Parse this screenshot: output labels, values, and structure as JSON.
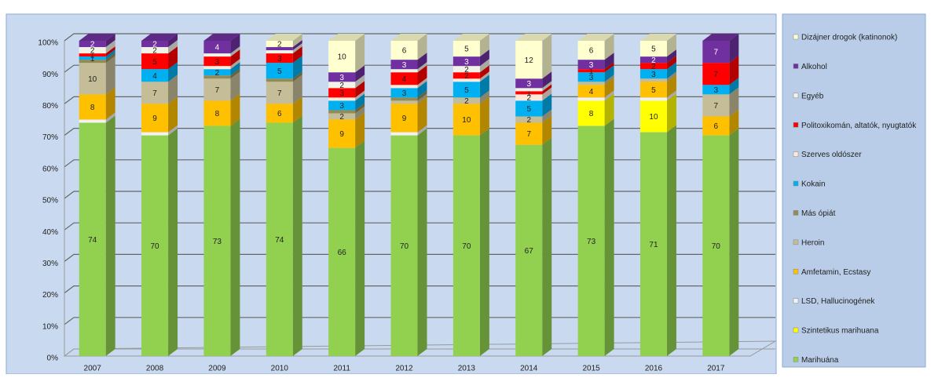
{
  "chart_data": {
    "type": "bar3d_stacked",
    "categories": [
      "2007",
      "2008",
      "2009",
      "2010",
      "2011",
      "2012",
      "2013",
      "2014",
      "2015",
      "2016",
      "2017"
    ],
    "series": [
      {
        "name": "Marihuána",
        "color": "#92d050",
        "values": [
          74,
          70,
          73,
          74,
          66,
          70,
          70,
          67,
          73,
          71,
          70
        ]
      },
      {
        "name": "Szintetikus marihuana",
        "color": "#ffff00",
        "values": [
          0,
          0,
          0,
          0,
          0,
          0,
          0,
          0,
          8,
          10,
          0
        ]
      },
      {
        "name": "LSD, Hallucinogének",
        "color": "#f2f2f2",
        "values": [
          1,
          1,
          0,
          0,
          0,
          1,
          0,
          0,
          1,
          1,
          0
        ]
      },
      {
        "name": "Amfetamin, Ecstasy",
        "color": "#ffc000",
        "values": [
          8,
          9,
          8,
          6,
          9,
          9,
          10,
          7,
          4,
          5,
          6
        ]
      },
      {
        "name": "Heroin",
        "color": "#c4bd97",
        "values": [
          10,
          7,
          7,
          7,
          2,
          1,
          2,
          2,
          1,
          1,
          7
        ]
      },
      {
        "name": "Más ópiát",
        "color": "#948a54",
        "values": [
          1,
          0,
          1,
          1,
          1,
          1,
          0,
          0,
          0,
          0,
          0
        ]
      },
      {
        "name": "Kokain",
        "color": "#00b0f0",
        "values": [
          1,
          4,
          2,
          5,
          3,
          3,
          5,
          5,
          3,
          3,
          3
        ]
      },
      {
        "name": "Szerves oldószer",
        "color": "#fde9d9",
        "values": [
          0,
          0,
          1,
          0,
          1,
          1,
          1,
          2,
          0,
          0,
          0
        ]
      },
      {
        "name": "Politoxikomán, altatók, nyugtatók",
        "color": "#ff0000",
        "values": [
          1,
          5,
          3,
          3,
          3,
          4,
          2,
          1,
          1,
          2,
          7
        ]
      },
      {
        "name": "Egyéb",
        "color": "#f2f2e6",
        "values": [
          2,
          2,
          1,
          1,
          2,
          1,
          2,
          1,
          0,
          0,
          0
        ]
      },
      {
        "name": "Alkohol",
        "color": "#7030a0",
        "values": [
          2,
          2,
          4,
          1,
          3,
          3,
          3,
          3,
          3,
          2,
          7
        ]
      },
      {
        "name": "Dizájner drogok (katinonok)",
        "color": "#ffffd0",
        "values": [
          0,
          0,
          0,
          2,
          10,
          6,
          5,
          12,
          6,
          5,
          0
        ]
      }
    ],
    "ylim": [
      0,
      100
    ],
    "yticks": [
      {
        "value": 0,
        "label": "0%"
      },
      {
        "value": 10,
        "label": "10%"
      },
      {
        "value": 20,
        "label": "20%"
      },
      {
        "value": 30,
        "label": "30%"
      },
      {
        "value": 40,
        "label": "40%"
      },
      {
        "value": 50,
        "label": "50%"
      },
      {
        "value": 60,
        "label": "60%"
      },
      {
        "value": 70,
        "label": "70%"
      },
      {
        "value": 80,
        "label": "80%"
      },
      {
        "value": 90,
        "label": "90%"
      },
      {
        "value": 100,
        "label": "100%"
      }
    ],
    "grid": true
  }
}
